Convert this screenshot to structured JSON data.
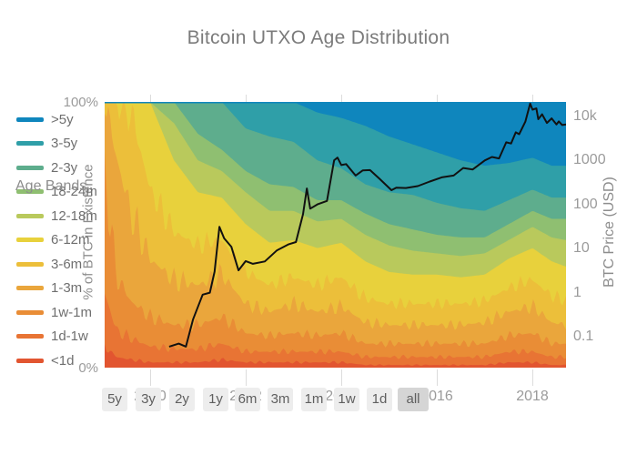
{
  "title": "Bitcoin UTXO Age Distribution",
  "legend": {
    "title": "Age Bands"
  },
  "y_left_axis": {
    "title": "% of BTC in Existence",
    "ticks": [
      "100%",
      "0%"
    ]
  },
  "y_right_axis": {
    "title": "BTC Price (USD)",
    "ticks": [
      "10k",
      "1000",
      "100",
      "10",
      "1",
      "0.1"
    ]
  },
  "x_axis": {
    "ticks": [
      "2010",
      "2012",
      "2014",
      "2016",
      "2018"
    ]
  },
  "range_buttons": {
    "labels": [
      "5y",
      "3y",
      "2y",
      "1y",
      "6m",
      "3m",
      "1m",
      "1w",
      "1d",
      "all"
    ],
    "active": "all"
  },
  "colors": {
    "price_line": "#111111",
    "tick_text": "#9b9b9b",
    "title_text": "#7b7b7b"
  },
  "chart_data": {
    "type": "area",
    "stacking": "percent",
    "title": "Bitcoin UTXO Age Distribution",
    "xlabel": "",
    "ylabel_left": "% of BTC in Existence",
    "ylabel_right": "BTC Price (USD)",
    "x_range": [
      2009.05,
      2018.7
    ],
    "y_left_range": [
      0,
      100
    ],
    "y_right_log_range": [
      0.02,
      21000
    ],
    "grid": false,
    "legend_position": "left",
    "x_years": [
      2009.05,
      2009.3,
      2009.6,
      2010.0,
      2010.5,
      2011.0,
      2011.5,
      2012.0,
      2012.5,
      2013.0,
      2013.5,
      2014.0,
      2014.5,
      2015.0,
      2015.5,
      2016.0,
      2016.5,
      2017.0,
      2017.5,
      2018.0,
      2018.4,
      2018.7
    ],
    "series": [
      {
        "name": ">5y",
        "color": "#0f86bd",
        "values": [
          0,
          0,
          0,
          0,
          0,
          0,
          0,
          0,
          0,
          0,
          4,
          6,
          9,
          13,
          16,
          19,
          22,
          24,
          23,
          21,
          24,
          24
        ]
      },
      {
        "name": "3-5y",
        "color": "#2f9fa8",
        "values": [
          0,
          0,
          0,
          0,
          0,
          0,
          0,
          10,
          13,
          15,
          18,
          19,
          22,
          21,
          19,
          19,
          18,
          17,
          14,
          12,
          12,
          12
        ]
      },
      {
        "name": "2-3y",
        "color": "#5ead8d",
        "values": [
          0,
          0,
          0,
          0,
          0,
          12,
          18,
          16,
          18,
          17,
          15,
          12,
          11,
          12,
          13,
          12,
          11,
          10,
          9,
          8,
          8,
          8
        ]
      },
      {
        "name": "18-24m",
        "color": "#8fbf71",
        "values": [
          0,
          0,
          0,
          0,
          8,
          10,
          8,
          8,
          10,
          9,
          8,
          7,
          8,
          8,
          8,
          7,
          7,
          6,
          6,
          6,
          7,
          8
        ]
      },
      {
        "name": "12-18m",
        "color": "#b9c95c",
        "values": [
          0,
          0,
          0,
          0,
          14,
          12,
          10,
          12,
          12,
          11,
          10,
          9,
          10,
          10,
          9,
          8,
          8,
          8,
          7,
          8,
          9,
          10
        ]
      },
      {
        "name": "6-12m",
        "color": "#e8d13c",
        "values": [
          0,
          0,
          4,
          33,
          27,
          20,
          16,
          18,
          16,
          14,
          14,
          13,
          14,
          12,
          11,
          11,
          10,
          10,
          11,
          12,
          13,
          13
        ]
      },
      {
        "name": "3-6m",
        "color": "#ecbf3a",
        "values": [
          0,
          21,
          38,
          26,
          18,
          15,
          13,
          12,
          10,
          10,
          10,
          11,
          9,
          8,
          8,
          8,
          8,
          8,
          9,
          10,
          10,
          9
        ]
      },
      {
        "name": "1-3m",
        "color": "#eaa63c",
        "values": [
          27,
          45,
          33,
          22,
          17,
          15,
          16,
          11,
          9,
          11,
          9,
          10,
          8,
          7,
          7,
          7,
          7,
          8,
          9,
          10,
          8,
          7
        ]
      },
      {
        "name": "1w-1m",
        "color": "#e98d36",
        "values": [
          45,
          20,
          14,
          11,
          9,
          9,
          10,
          7,
          6,
          7,
          6,
          7,
          5,
          5,
          5,
          5,
          5,
          5,
          6,
          7,
          5,
          5
        ]
      },
      {
        "name": "1d-1w",
        "color": "#e87434",
        "values": [
          20,
          10,
          8,
          6,
          5,
          5,
          6,
          4,
          4,
          4,
          4,
          4,
          3,
          3,
          3,
          3,
          3,
          3,
          4,
          4,
          3,
          3
        ]
      },
      {
        "name": "<1d",
        "color": "#e25530",
        "values": [
          8,
          4,
          3,
          2,
          2,
          2,
          3,
          2,
          2,
          2,
          2,
          2,
          1,
          1,
          1,
          1,
          1,
          1,
          2,
          2,
          1,
          1
        ]
      }
    ],
    "price_line": {
      "name": "BTC Price (USD)",
      "color": "#111111",
      "scale": "log",
      "points": [
        [
          2010.4,
          0.06
        ],
        [
          2010.6,
          0.07
        ],
        [
          2010.75,
          0.06
        ],
        [
          2010.9,
          0.25
        ],
        [
          2011.1,
          0.9
        ],
        [
          2011.25,
          1.0
        ],
        [
          2011.35,
          3
        ],
        [
          2011.45,
          31
        ],
        [
          2011.55,
          17
        ],
        [
          2011.7,
          11
        ],
        [
          2011.85,
          3.2
        ],
        [
          2012.0,
          5.2
        ],
        [
          2012.15,
          4.5
        ],
        [
          2012.4,
          5.1
        ],
        [
          2012.65,
          9
        ],
        [
          2012.9,
          12.5
        ],
        [
          2013.05,
          14
        ],
        [
          2013.2,
          60
        ],
        [
          2013.28,
          230
        ],
        [
          2013.35,
          80
        ],
        [
          2013.5,
          100
        ],
        [
          2013.7,
          120
        ],
        [
          2013.85,
          1000
        ],
        [
          2013.92,
          1150
        ],
        [
          2014.0,
          780
        ],
        [
          2014.1,
          820
        ],
        [
          2014.3,
          450
        ],
        [
          2014.45,
          590
        ],
        [
          2014.6,
          600
        ],
        [
          2014.8,
          380
        ],
        [
          2015.05,
          210
        ],
        [
          2015.15,
          240
        ],
        [
          2015.35,
          235
        ],
        [
          2015.6,
          260
        ],
        [
          2015.85,
          330
        ],
        [
          2016.1,
          410
        ],
        [
          2016.35,
          450
        ],
        [
          2016.55,
          670
        ],
        [
          2016.75,
          620
        ],
        [
          2017.0,
          990
        ],
        [
          2017.15,
          1190
        ],
        [
          2017.3,
          1100
        ],
        [
          2017.45,
          2550
        ],
        [
          2017.55,
          2400
        ],
        [
          2017.65,
          4300
        ],
        [
          2017.72,
          3900
        ],
        [
          2017.85,
          7500
        ],
        [
          2017.95,
          19300
        ],
        [
          2018.0,
          14000
        ],
        [
          2018.08,
          15000
        ],
        [
          2018.12,
          8500
        ],
        [
          2018.2,
          11000
        ],
        [
          2018.3,
          7000
        ],
        [
          2018.4,
          8900
        ],
        [
          2018.5,
          6500
        ],
        [
          2018.55,
          7600
        ],
        [
          2018.62,
          6300
        ],
        [
          2018.7,
          6500
        ]
      ]
    }
  }
}
